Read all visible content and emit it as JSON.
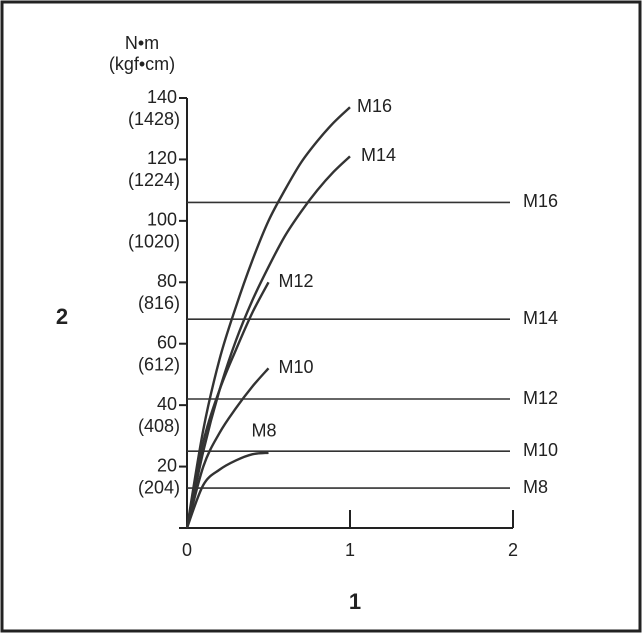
{
  "chart_data": {
    "type": "line",
    "x_label": "1",
    "y_label": "2",
    "y_unit": "N•m",
    "y2_unit": "(kgf•cm)",
    "xlim": [
      0,
      2
    ],
    "xticks": [
      0,
      1,
      2
    ],
    "ylim": [
      0,
      140
    ],
    "yticks": [
      0,
      20,
      40,
      60,
      80,
      100,
      120,
      140
    ],
    "y2lim": [
      0,
      1428
    ],
    "y2ticks": [
      {
        "value": 204,
        "label": "(204)"
      },
      {
        "value": 408,
        "label": "(408)"
      },
      {
        "value": 612,
        "label": "(612)"
      },
      {
        "value": 816,
        "label": "(816)"
      },
      {
        "value": 1020,
        "label": "(1020)"
      },
      {
        "value": 1224,
        "label": "(1224)"
      },
      {
        "value": 1428,
        "label": "(1428)"
      }
    ],
    "series": [
      {
        "name": "M16",
        "color": "#333333",
        "x": [
          0,
          0.1,
          0.2,
          0.3,
          0.4,
          0.5,
          0.6,
          0.7,
          0.8,
          0.9,
          1
        ],
        "values": [
          0,
          32,
          55,
          72,
          87,
          100,
          110,
          119,
          126,
          132,
          137
        ]
      },
      {
        "name": "M14",
        "color": "#333333",
        "x": [
          0,
          0.1,
          0.2,
          0.3,
          0.4,
          0.5,
          0.6,
          0.7,
          0.8,
          0.9,
          1
        ],
        "values": [
          0,
          25,
          45,
          61,
          74,
          85,
          95,
          103,
          110,
          116,
          121
        ]
      },
      {
        "name": "M12",
        "color": "#333333",
        "x": [
          0,
          0.1,
          0.2,
          0.3,
          0.4,
          0.5
        ],
        "values": [
          0,
          28,
          45,
          58,
          70,
          80
        ]
      },
      {
        "name": "M10",
        "color": "#333333",
        "x": [
          0,
          0.1,
          0.2,
          0.3,
          0.4,
          0.5
        ],
        "values": [
          0,
          20,
          31,
          39,
          46,
          52
        ]
      },
      {
        "name": "M8",
        "color": "#333333",
        "x": [
          0,
          0.1,
          0.2,
          0.3,
          0.4,
          0.5
        ],
        "values": [
          0,
          14,
          19,
          22,
          24,
          24.5
        ]
      }
    ],
    "limits": [
      {
        "name": "M16",
        "value": 106
      },
      {
        "name": "M14",
        "value": 68
      },
      {
        "name": "M12",
        "value": 42
      },
      {
        "name": "M10",
        "value": 25
      },
      {
        "name": "M8",
        "value": 13
      }
    ]
  }
}
